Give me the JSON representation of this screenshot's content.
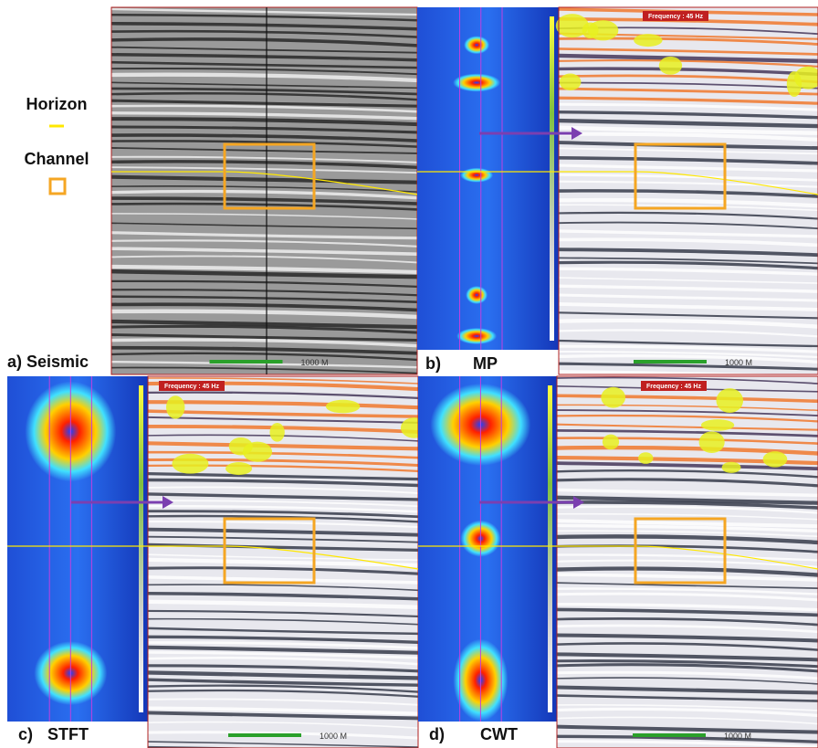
{
  "legend": {
    "horizon": "Horizon",
    "channel": "Channel"
  },
  "panels": [
    {
      "label": "a) Seismic",
      "scale": "1000 M"
    },
    {
      "label": "b)",
      "method": "MP",
      "frequency": "Frequency : 45 Hz",
      "scale": "1000 M"
    },
    {
      "label": "c)",
      "method": "STFT",
      "frequency": "Frequency : 45 Hz",
      "scale": "1000 M"
    },
    {
      "label": "d)",
      "method": "CWT",
      "frequency": "Frequency : 45 Hz",
      "scale": "1000 M"
    }
  ]
}
